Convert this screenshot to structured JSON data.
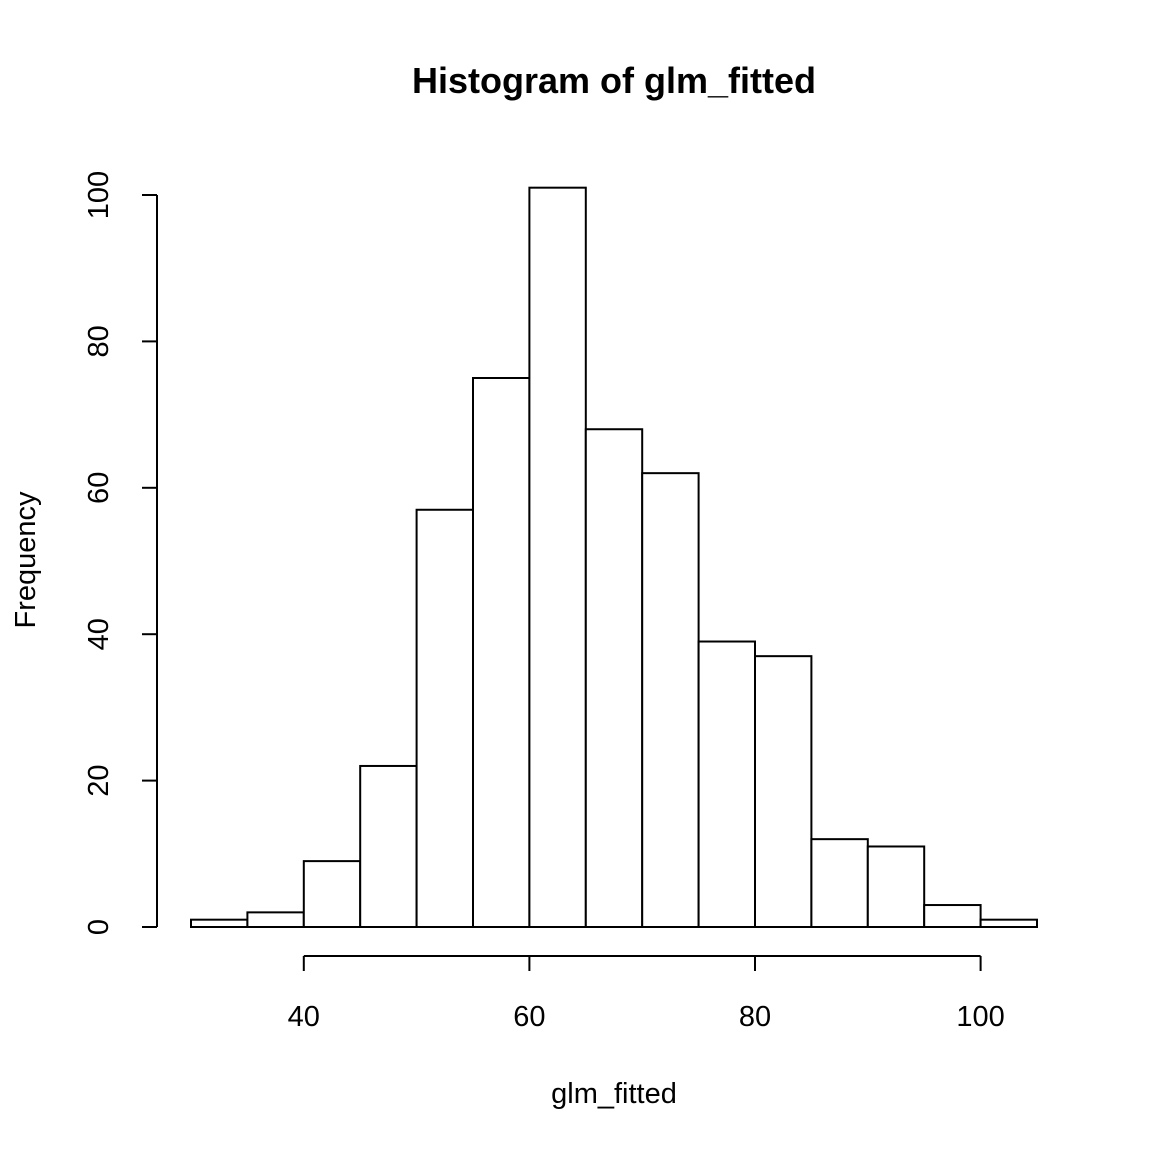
{
  "chart_data": {
    "type": "bar",
    "title": "Histogram of glm_fitted",
    "xlabel": "glm_fitted",
    "ylabel": "Frequency",
    "bins": [
      {
        "start": 30,
        "end": 35,
        "value": 1
      },
      {
        "start": 35,
        "end": 40,
        "value": 2
      },
      {
        "start": 40,
        "end": 45,
        "value": 9
      },
      {
        "start": 45,
        "end": 50,
        "value": 22
      },
      {
        "start": 50,
        "end": 55,
        "value": 57
      },
      {
        "start": 55,
        "end": 60,
        "value": 75
      },
      {
        "start": 60,
        "end": 65,
        "value": 101
      },
      {
        "start": 65,
        "end": 70,
        "value": 68
      },
      {
        "start": 70,
        "end": 75,
        "value": 62
      },
      {
        "start": 75,
        "end": 80,
        "value": 39
      },
      {
        "start": 80,
        "end": 85,
        "value": 37
      },
      {
        "start": 85,
        "end": 90,
        "value": 12
      },
      {
        "start": 90,
        "end": 95,
        "value": 11
      },
      {
        "start": 95,
        "end": 100,
        "value": 3
      },
      {
        "start": 100,
        "end": 105,
        "value": 1
      }
    ],
    "xlim": [
      30,
      105
    ],
    "ylim": [
      0,
      100
    ],
    "xticks": [
      40,
      60,
      80,
      100
    ],
    "yticks": [
      0,
      20,
      40,
      60,
      80,
      100
    ],
    "grid": false
  }
}
